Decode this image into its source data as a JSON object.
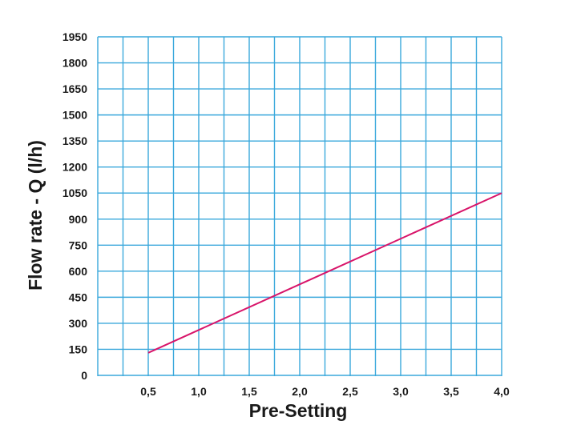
{
  "chart_data": {
    "type": "line",
    "xlabel": "Pre-Setting",
    "ylabel": "Flow rate - Q (l/h)",
    "x_ticks": [
      "0,5",
      "1,0",
      "1,5",
      "2,0",
      "2,5",
      "3,0",
      "3,5",
      "4,0"
    ],
    "y_ticks": [
      "0",
      "150",
      "300",
      "450",
      "600",
      "750",
      "900",
      "1050",
      "1200",
      "1350",
      "1500",
      "1650",
      "1800",
      "1950"
    ],
    "xlim": [
      0,
      4
    ],
    "ylim": [
      0,
      1950
    ],
    "grid": true,
    "colors": {
      "grid": "#3aa8dc",
      "series": "#d8156a"
    },
    "series": [
      {
        "x": [
          0.5,
          4.0
        ],
        "y": [
          130,
          1050
        ]
      }
    ]
  }
}
